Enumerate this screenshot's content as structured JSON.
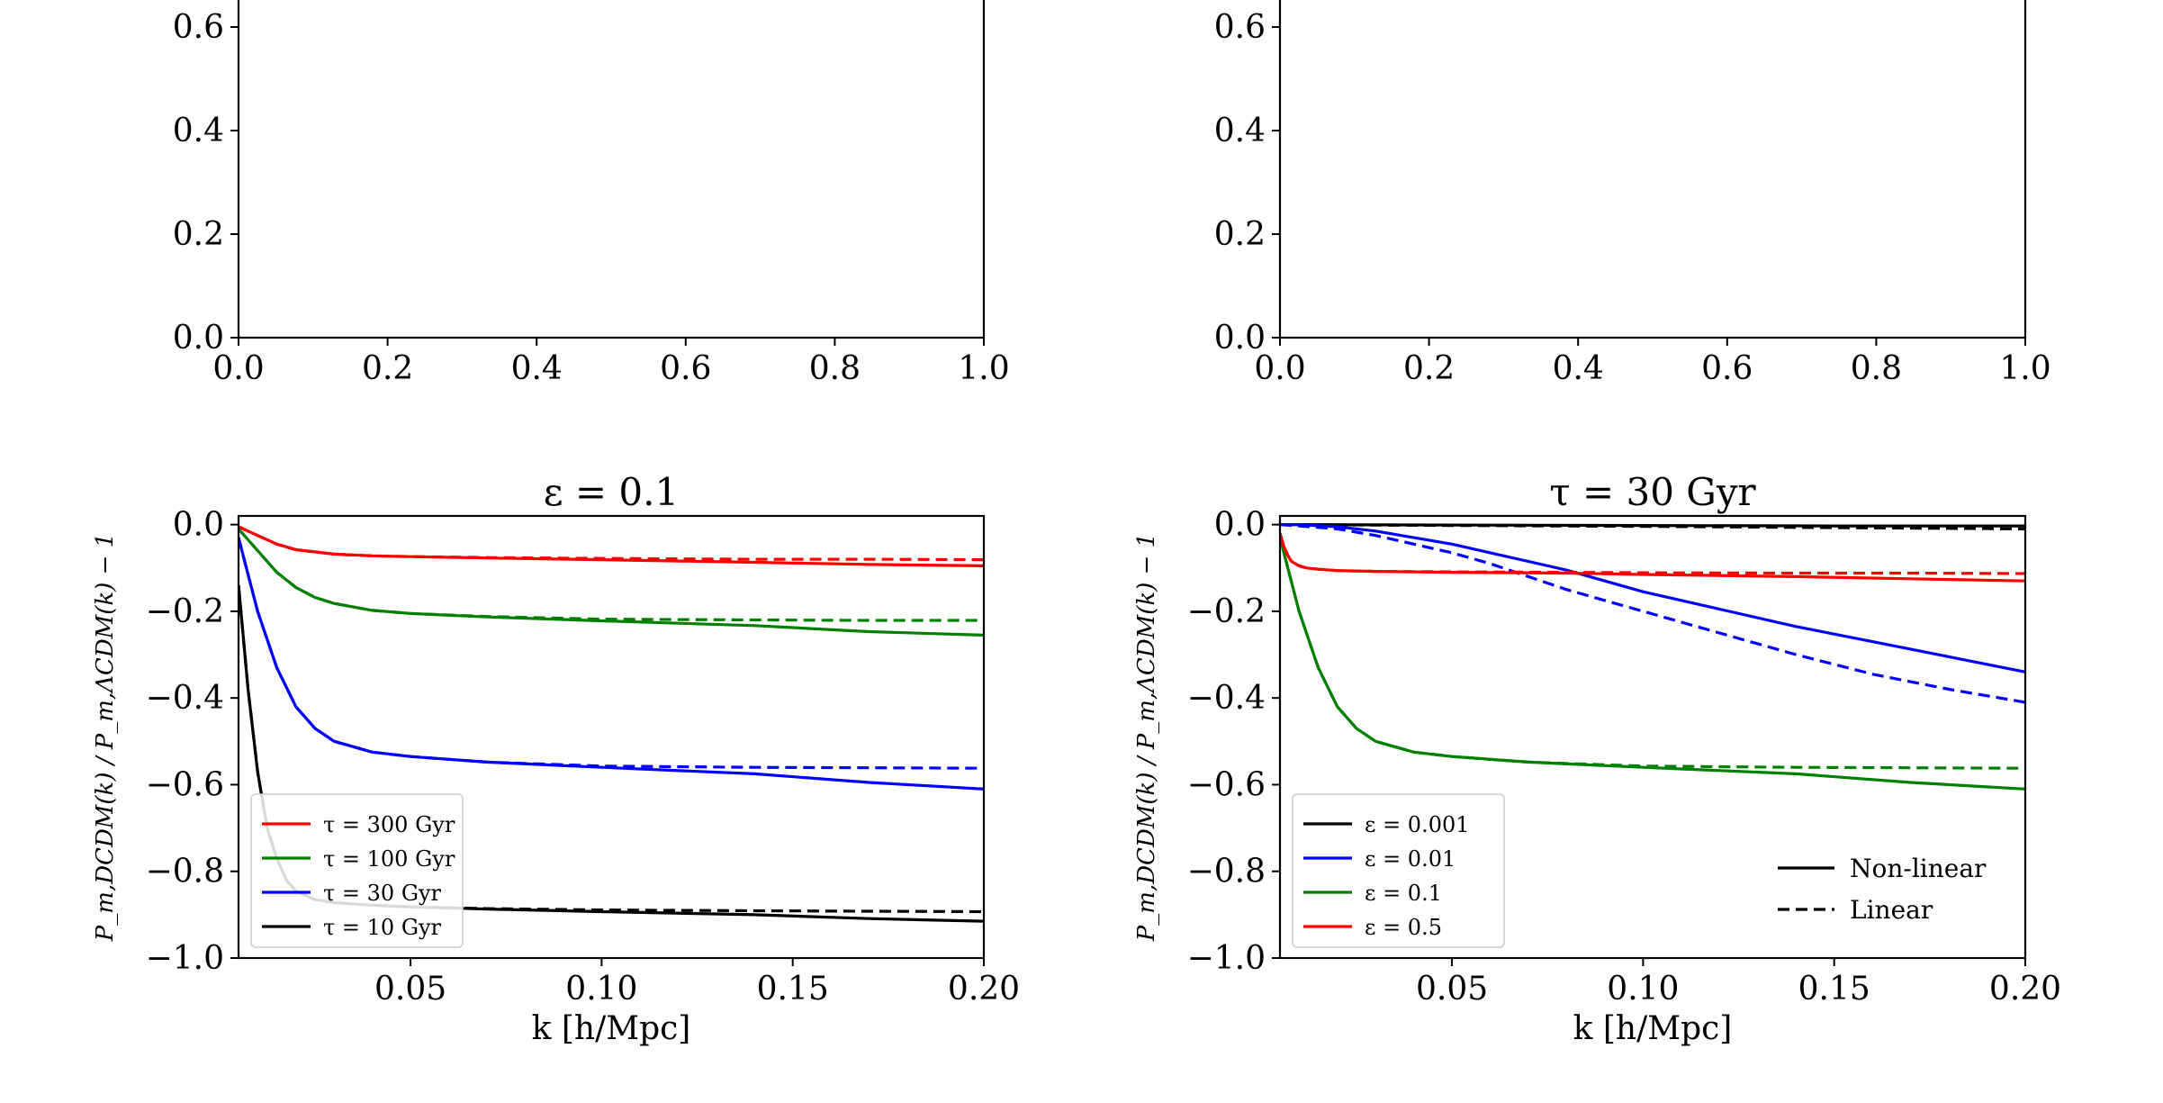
{
  "chart_data": [
    {
      "type": "line",
      "panel": "top-left",
      "title": "",
      "xlabel": "",
      "ylabel": "",
      "xlim": [
        0.0,
        1.0
      ],
      "ylim": [
        0.0,
        1.0
      ],
      "x_ticks": [
        "0.0",
        "0.2",
        "0.4",
        "0.6",
        "0.8",
        "1.0"
      ],
      "y_ticks": [
        "0.0",
        "0.2",
        "0.4",
        "0.6"
      ],
      "series": []
    },
    {
      "type": "line",
      "panel": "top-right",
      "title": "",
      "xlabel": "",
      "ylabel": "",
      "xlim": [
        0.0,
        1.0
      ],
      "ylim": [
        0.0,
        1.0
      ],
      "x_ticks": [
        "0.0",
        "0.2",
        "0.4",
        "0.6",
        "0.8",
        "1.0"
      ],
      "y_ticks": [
        "0.0",
        "0.2",
        "0.4",
        "0.6"
      ],
      "series": []
    },
    {
      "type": "line",
      "panel": "bottom-left",
      "title": "ε = 0.1",
      "xlabel": "k [h/Mpc]",
      "ylabel": "P_m,DCDM(k) / P_m,ΛCDM(k) − 1",
      "xlim": [
        0.005,
        0.2
      ],
      "ylim": [
        -1.0,
        0.02
      ],
      "x_ticks": [
        "0.05",
        "0.10",
        "0.15",
        "0.20"
      ],
      "y_ticks": [
        "0.0",
        "−0.2",
        "−0.4",
        "−0.6",
        "−0.8",
        "−1.0"
      ],
      "legend": {
        "placement": "lower-left",
        "entries": [
          "τ = 300 Gyr",
          "τ = 100 Gyr",
          "τ = 30 Gyr",
          "τ = 10 Gyr"
        ]
      },
      "series": [
        {
          "name": "τ = 300 Gyr",
          "style": "solid",
          "color": "#ff0000",
          "x": [
            0.005,
            0.01,
            0.015,
            0.02,
            0.03,
            0.04,
            0.05,
            0.07,
            0.1,
            0.14,
            0.17,
            0.2
          ],
          "y": [
            -0.005,
            -0.025,
            -0.045,
            -0.058,
            -0.068,
            -0.072,
            -0.074,
            -0.077,
            -0.081,
            -0.087,
            -0.092,
            -0.095
          ]
        },
        {
          "name": "τ = 300 Gyr (linear)",
          "style": "dashed",
          "color": "#ff0000",
          "x": [
            0.005,
            0.01,
            0.015,
            0.02,
            0.03,
            0.04,
            0.05,
            0.07,
            0.1,
            0.14,
            0.17,
            0.2
          ],
          "y": [
            -0.005,
            -0.025,
            -0.045,
            -0.058,
            -0.068,
            -0.072,
            -0.074,
            -0.076,
            -0.078,
            -0.08,
            -0.08,
            -0.081
          ]
        },
        {
          "name": "τ = 100 Gyr",
          "style": "solid",
          "color": "#008000",
          "x": [
            0.005,
            0.01,
            0.015,
            0.02,
            0.025,
            0.03,
            0.04,
            0.05,
            0.07,
            0.1,
            0.14,
            0.17,
            0.2
          ],
          "y": [
            -0.01,
            -0.06,
            -0.11,
            -0.145,
            -0.168,
            -0.182,
            -0.198,
            -0.205,
            -0.213,
            -0.222,
            -0.233,
            -0.247,
            -0.255
          ]
        },
        {
          "name": "τ = 100 Gyr (linear)",
          "style": "dashed",
          "color": "#008000",
          "x": [
            0.005,
            0.01,
            0.015,
            0.02,
            0.025,
            0.03,
            0.04,
            0.05,
            0.07,
            0.1,
            0.14,
            0.17,
            0.2
          ],
          "y": [
            -0.01,
            -0.06,
            -0.11,
            -0.145,
            -0.168,
            -0.182,
            -0.198,
            -0.205,
            -0.212,
            -0.218,
            -0.22,
            -0.221,
            -0.221
          ]
        },
        {
          "name": "τ = 30 Gyr",
          "style": "solid",
          "color": "#0000ff",
          "x": [
            0.005,
            0.01,
            0.015,
            0.02,
            0.025,
            0.03,
            0.04,
            0.05,
            0.07,
            0.1,
            0.14,
            0.17,
            0.2
          ],
          "y": [
            -0.03,
            -0.2,
            -0.33,
            -0.42,
            -0.47,
            -0.5,
            -0.525,
            -0.535,
            -0.548,
            -0.56,
            -0.575,
            -0.595,
            -0.61
          ]
        },
        {
          "name": "τ = 30 Gyr (linear)",
          "style": "dashed",
          "color": "#0000ff",
          "x": [
            0.005,
            0.01,
            0.015,
            0.02,
            0.025,
            0.03,
            0.04,
            0.05,
            0.07,
            0.1,
            0.14,
            0.17,
            0.2
          ],
          "y": [
            -0.03,
            -0.2,
            -0.33,
            -0.42,
            -0.47,
            -0.5,
            -0.525,
            -0.535,
            -0.548,
            -0.557,
            -0.56,
            -0.561,
            -0.562
          ]
        },
        {
          "name": "τ = 10 Gyr",
          "style": "solid",
          "color": "#000000",
          "x": [
            0.005,
            0.0075,
            0.01,
            0.0125,
            0.015,
            0.0175,
            0.02,
            0.025,
            0.03,
            0.04,
            0.05,
            0.07,
            0.1,
            0.14,
            0.17,
            0.2
          ],
          "y": [
            -0.14,
            -0.38,
            -0.57,
            -0.7,
            -0.77,
            -0.82,
            -0.845,
            -0.865,
            -0.872,
            -0.878,
            -0.882,
            -0.887,
            -0.893,
            -0.9,
            -0.909,
            -0.915
          ]
        },
        {
          "name": "τ = 10 Gyr (linear)",
          "style": "dashed",
          "color": "#000000",
          "x": [
            0.005,
            0.0075,
            0.01,
            0.0125,
            0.015,
            0.0175,
            0.02,
            0.025,
            0.03,
            0.04,
            0.05,
            0.07,
            0.1,
            0.14,
            0.17,
            0.2
          ],
          "y": [
            -0.14,
            -0.38,
            -0.57,
            -0.7,
            -0.77,
            -0.82,
            -0.845,
            -0.865,
            -0.872,
            -0.878,
            -0.882,
            -0.886,
            -0.889,
            -0.891,
            -0.892,
            -0.893
          ]
        }
      ]
    },
    {
      "type": "line",
      "panel": "bottom-right",
      "title": "τ = 30 Gyr",
      "xlabel": "k [h/Mpc]",
      "ylabel": "P_m,DCDM(k) / P_m,ΛCDM(k) − 1",
      "xlim": [
        0.005,
        0.2
      ],
      "ylim": [
        -1.0,
        0.02
      ],
      "x_ticks": [
        "0.05",
        "0.10",
        "0.15",
        "0.20"
      ],
      "y_ticks": [
        "0.0",
        "−0.2",
        "−0.4",
        "−0.6",
        "−0.8",
        "−1.0"
      ],
      "legend": {
        "placement": "lower-left",
        "entries": [
          "ε = 0.001",
          "ε = 0.01",
          "ε = 0.1",
          "ε = 0.5"
        ]
      },
      "style_legend": {
        "placement": "lower-right",
        "entries": [
          "Non-linear",
          "Linear"
        ]
      },
      "series": [
        {
          "name": "ε = 0.001",
          "style": "solid",
          "color": "#000000",
          "x": [
            0.005,
            0.05,
            0.1,
            0.15,
            0.2
          ],
          "y": [
            0.0,
            -0.001,
            -0.002,
            -0.003,
            -0.003
          ]
        },
        {
          "name": "ε = 0.001 (linear)",
          "style": "dashed",
          "color": "#000000",
          "x": [
            0.005,
            0.05,
            0.1,
            0.15,
            0.2
          ],
          "y": [
            0.0,
            -0.002,
            -0.004,
            -0.007,
            -0.01
          ]
        },
        {
          "name": "ε = 0.01",
          "style": "solid",
          "color": "#0000ff",
          "x": [
            0.005,
            0.01,
            0.02,
            0.03,
            0.04,
            0.05,
            0.06,
            0.07,
            0.08,
            0.09,
            0.1,
            0.12,
            0.14,
            0.16,
            0.18,
            0.2
          ],
          "y": [
            0.0,
            0.0,
            -0.005,
            -0.015,
            -0.03,
            -0.045,
            -0.065,
            -0.085,
            -0.105,
            -0.13,
            -0.155,
            -0.195,
            -0.235,
            -0.27,
            -0.305,
            -0.34
          ]
        },
        {
          "name": "ε = 0.01 (linear)",
          "style": "dashed",
          "color": "#0000ff",
          "x": [
            0.005,
            0.01,
            0.02,
            0.03,
            0.04,
            0.05,
            0.06,
            0.07,
            0.08,
            0.09,
            0.1,
            0.12,
            0.14,
            0.16,
            0.18,
            0.2
          ],
          "y": [
            0.0,
            -0.003,
            -0.01,
            -0.025,
            -0.045,
            -0.065,
            -0.09,
            -0.12,
            -0.15,
            -0.175,
            -0.2,
            -0.25,
            -0.3,
            -0.345,
            -0.38,
            -0.41
          ]
        },
        {
          "name": "ε = 0.1",
          "style": "solid",
          "color": "#008000",
          "x": [
            0.005,
            0.01,
            0.015,
            0.02,
            0.025,
            0.03,
            0.04,
            0.05,
            0.07,
            0.1,
            0.14,
            0.17,
            0.2
          ],
          "y": [
            -0.03,
            -0.2,
            -0.33,
            -0.42,
            -0.47,
            -0.5,
            -0.525,
            -0.535,
            -0.548,
            -0.56,
            -0.575,
            -0.595,
            -0.61
          ]
        },
        {
          "name": "ε = 0.1 (linear)",
          "style": "dashed",
          "color": "#008000",
          "x": [
            0.005,
            0.01,
            0.015,
            0.02,
            0.025,
            0.03,
            0.04,
            0.05,
            0.07,
            0.1,
            0.14,
            0.17,
            0.2
          ],
          "y": [
            -0.03,
            -0.2,
            -0.33,
            -0.42,
            -0.47,
            -0.5,
            -0.525,
            -0.535,
            -0.548,
            -0.557,
            -0.56,
            -0.561,
            -0.562
          ]
        },
        {
          "name": "ε = 0.5",
          "style": "solid",
          "color": "#ff0000",
          "x": [
            0.005,
            0.006,
            0.007,
            0.008,
            0.01,
            0.012,
            0.015,
            0.02,
            0.03,
            0.05,
            0.08,
            0.1,
            0.14,
            0.17,
            0.2
          ],
          "y": [
            -0.02,
            -0.05,
            -0.07,
            -0.085,
            -0.095,
            -0.1,
            -0.103,
            -0.106,
            -0.108,
            -0.11,
            -0.112,
            -0.115,
            -0.12,
            -0.125,
            -0.13
          ]
        },
        {
          "name": "ε = 0.5 (linear)",
          "style": "dashed",
          "color": "#ff0000",
          "x": [
            0.005,
            0.006,
            0.007,
            0.008,
            0.01,
            0.012,
            0.015,
            0.02,
            0.03,
            0.05,
            0.08,
            0.1,
            0.14,
            0.17,
            0.2
          ],
          "y": [
            -0.02,
            -0.05,
            -0.07,
            -0.085,
            -0.095,
            -0.1,
            -0.103,
            -0.106,
            -0.108,
            -0.109,
            -0.11,
            -0.111,
            -0.112,
            -0.112,
            -0.113
          ]
        }
      ]
    }
  ]
}
